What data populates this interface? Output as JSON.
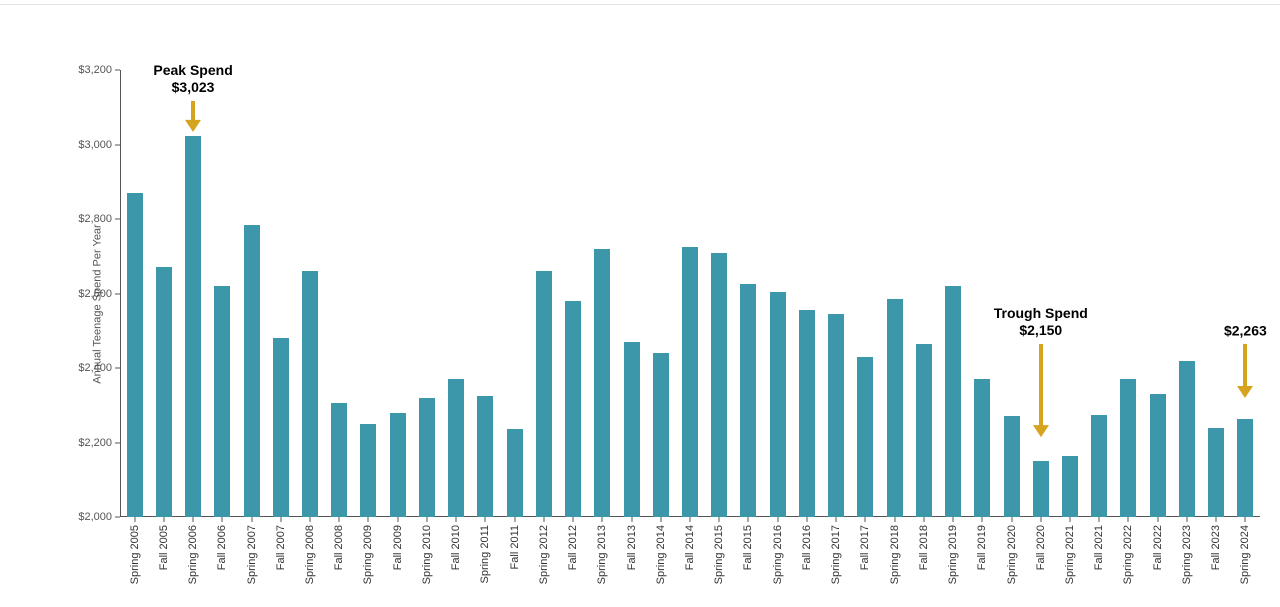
{
  "chart": {
    "type": "bar",
    "y_axis_title": "Annual Teenage Spend Per Year",
    "y_axis_title_fontsize": 11,
    "x_label_fontsize": 11,
    "y_label_fontsize": 11,
    "ylim": [
      2000,
      3200
    ],
    "ytick_step": 200,
    "ytick_labels": [
      "$2,000",
      "$2,200",
      "$2,400",
      "$2,600",
      "$2,800",
      "$3,000",
      "$3,200"
    ],
    "bar_color": "#3d97ab",
    "axis_color": "#555555",
    "text_color": "#333333",
    "background_color": "#ffffff",
    "bar_width_ratio": 0.55,
    "categories": [
      "Spring 2005",
      "Fall 2005",
      "Spring 2006",
      "Fall 2006",
      "Spring 2007",
      "Fall 2007",
      "Spring 2008",
      "Fall 2008",
      "Spring 2009",
      "Fall 2009",
      "Spring 2010",
      "Fall 2010",
      "Spring 2011",
      "Fall 2011",
      "Spring 2012",
      "Fall 2012",
      "Spring 2013",
      "Fall 2013",
      "Spring 2014",
      "Fall 2014",
      "Spring 2015",
      "Fall 2015",
      "Spring 2016",
      "Fall 2016",
      "Spring 2017",
      "Fall 2017",
      "Spring 2018",
      "Fall 2018",
      "Spring 2019",
      "Fall 2019",
      "Spring 2020",
      "Fall 2020",
      "Spring 2021",
      "Fall 2021",
      "Spring 2022",
      "Fall 2022",
      "Spring 2023",
      "Fall 2023",
      "Spring 2024"
    ],
    "values": [
      2870,
      2670,
      3023,
      2620,
      2785,
      2480,
      2660,
      2305,
      2250,
      2280,
      2320,
      2370,
      2325,
      2235,
      2660,
      2580,
      2720,
      2470,
      2440,
      2725,
      2710,
      2625,
      2605,
      2555,
      2545,
      2430,
      2585,
      2465,
      2620,
      2370,
      2270,
      2150,
      2165,
      2275,
      2370,
      2330,
      2420,
      2240,
      2263
    ],
    "annotations": [
      {
        "name": "peak",
        "label_line1": "Peak Spend",
        "label_line2": "$3,023",
        "target_index": 2,
        "arrow_top_y": 3118,
        "arrow_bottom_y": 3035,
        "arrow_color": "#d6a31f",
        "label_over": true
      },
      {
        "name": "trough",
        "label_line1": "Trough Spend",
        "label_line2": "$2,150",
        "target_index": 31,
        "arrow_top_y": 2465,
        "arrow_bottom_y": 2215,
        "arrow_color": "#d6a31f",
        "label_over": true
      },
      {
        "name": "latest",
        "label_line1": "$2,263",
        "label_line2": "",
        "target_index": 38,
        "arrow_top_y": 2465,
        "arrow_bottom_y": 2320,
        "arrow_color": "#d6a31f",
        "label_over": true
      }
    ]
  }
}
